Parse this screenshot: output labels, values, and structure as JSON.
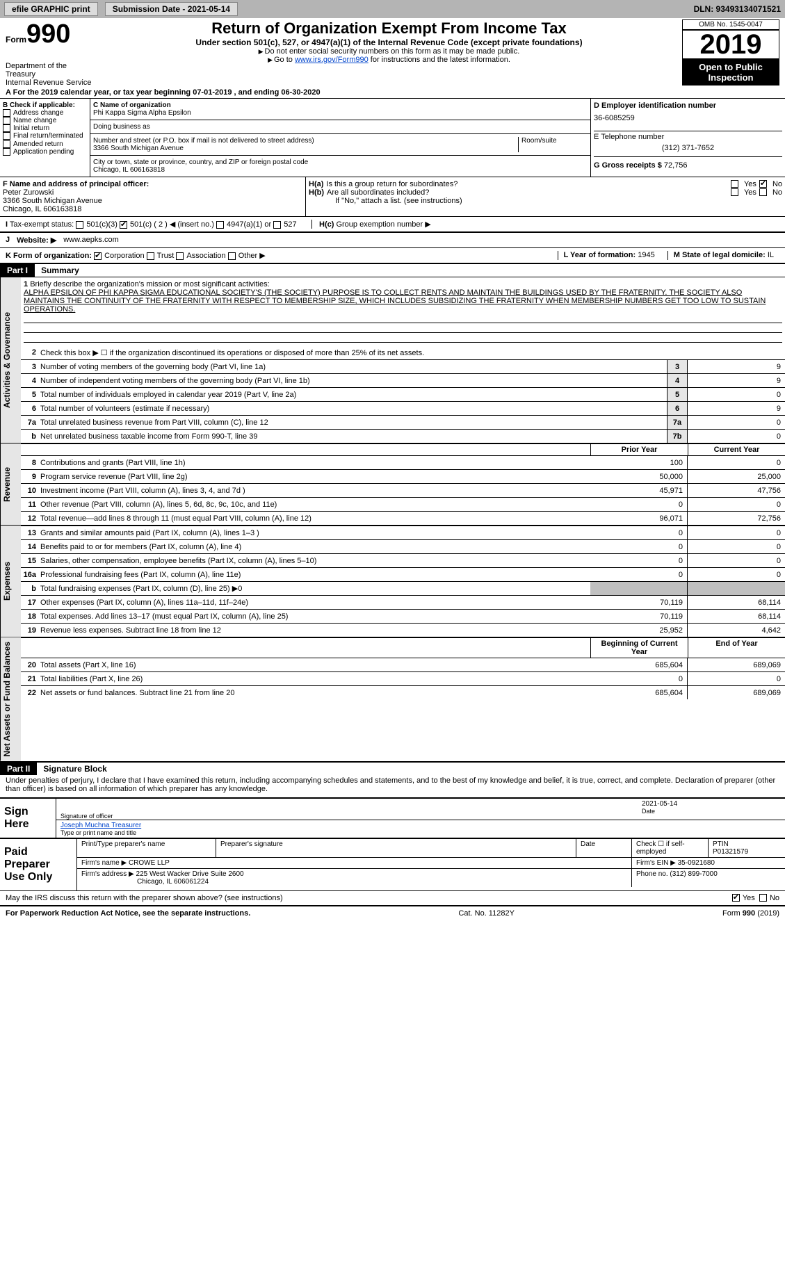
{
  "topbar": {
    "efile": "efile GRAPHIC print",
    "submission": "Submission Date - 2021-05-14",
    "dln": "DLN: 93493134071521"
  },
  "header": {
    "form_label": "Form",
    "form_no": "990",
    "dept": "Department of the Treasury\nInternal Revenue Service",
    "title": "Return of Organization Exempt From Income Tax",
    "sub": "Under section 501(c), 527, or 4947(a)(1) of the Internal Revenue Code (except private foundations)",
    "note1": "Do not enter social security numbers on this form as it may be made public.",
    "note2_pre": "Go to ",
    "note2_link": "www.irs.gov/Form990",
    "note2_post": " for instructions and the latest information.",
    "omb": "OMB No. 1545-0047",
    "year": "2019",
    "open": "Open to Public Inspection"
  },
  "period": "For the 2019 calendar year, or tax year beginning 07-01-2019    , and ending 06-30-2020",
  "section_b": {
    "label": "B Check if applicable:",
    "items": [
      "Address change",
      "Name change",
      "Initial return",
      "Final return/terminated",
      "Amended return",
      "Application pending"
    ]
  },
  "section_c": {
    "label": "C Name of organization",
    "name": "Phi Kappa Sigma Alpha Epsilon",
    "dba_label": "Doing business as",
    "addr_label": "Number and street (or P.O. box if mail is not delivered to street address)",
    "room_label": "Room/suite",
    "addr": "3366 South Michigan Avenue",
    "city_label": "City or town, state or province, country, and ZIP or foreign postal code",
    "city": "Chicago, IL  606163818"
  },
  "section_d": {
    "ein_label": "D Employer identification number",
    "ein": "36-6085259",
    "phone_label": "E Telephone number",
    "phone": "(312) 371-7652",
    "gross_label": "G Gross receipts $",
    "gross": "72,756"
  },
  "section_f": {
    "label": "F Name and address of principal officer:",
    "name": "Peter Zurowski",
    "addr": "3366 South Michigan Avenue",
    "city": "Chicago, IL  606163818"
  },
  "section_h": {
    "ha": "Is this a group return for subordinates?",
    "hb": "Are all subordinates included?",
    "hb_note": "If \"No,\" attach a list. (see instructions)",
    "hc": "Group exemption number ▶"
  },
  "tax_status": {
    "label": "Tax-exempt status:",
    "c3": "501(c)(3)",
    "c": "501(c) ( 2 ) ◀ (insert no.)",
    "a1": "4947(a)(1) or",
    "s527": "527"
  },
  "j_label": "Website: ▶",
  "j_val": "www.aepks.com",
  "k_label": "K Form of organization:",
  "k_opts": [
    "Corporation",
    "Trust",
    "Association",
    "Other ▶"
  ],
  "l_label": "L Year of formation:",
  "l_val": "1945",
  "m_label": "M State of legal domicile:",
  "m_val": "IL",
  "part1": {
    "hdr": "Part I",
    "title": "Summary"
  },
  "mission": {
    "num": "1",
    "label": "Briefly describe the organization's mission or most significant activities:",
    "text": "ALPHA EPSILON OF PHI KAPPA SIGMA EDUCATIONAL SOCIETY'S (THE SOCIETY) PURPOSE IS TO COLLECT RENTS AND MAINTAIN THE BUILDINGS USED BY THE FRATERNITY. THE SOCIETY ALSO MAINTAINS THE CONTINUITY OF THE FRATERNITY WITH RESPECT TO MEMBERSHIP SIZE, WHICH INCLUDES SUBSIDIZING THE FRATERNITY WHEN MEMBERSHIP NUMBERS GET TOO LOW TO SUSTAIN OPERATIONS."
  },
  "gov_rows": [
    {
      "n": "2",
      "d": "Check this box ▶ ☐ if the organization discontinued its operations or disposed of more than 25% of its net assets."
    },
    {
      "n": "3",
      "d": "Number of voting members of the governing body (Part VI, line 1a)",
      "b": "3",
      "v": "9"
    },
    {
      "n": "4",
      "d": "Number of independent voting members of the governing body (Part VI, line 1b)",
      "b": "4",
      "v": "9"
    },
    {
      "n": "5",
      "d": "Total number of individuals employed in calendar year 2019 (Part V, line 2a)",
      "b": "5",
      "v": "0"
    },
    {
      "n": "6",
      "d": "Total number of volunteers (estimate if necessary)",
      "b": "6",
      "v": "9"
    },
    {
      "n": "7a",
      "d": "Total unrelated business revenue from Part VIII, column (C), line 12",
      "b": "7a",
      "v": "0"
    },
    {
      "n": "b",
      "d": "Net unrelated business taxable income from Form 990-T, line 39",
      "b": "7b",
      "v": "0"
    }
  ],
  "col_hdrs": {
    "prior": "Prior Year",
    "current": "Current Year"
  },
  "rev_rows": [
    {
      "n": "8",
      "d": "Contributions and grants (Part VIII, line 1h)",
      "p": "100",
      "c": "0"
    },
    {
      "n": "9",
      "d": "Program service revenue (Part VIII, line 2g)",
      "p": "50,000",
      "c": "25,000"
    },
    {
      "n": "10",
      "d": "Investment income (Part VIII, column (A), lines 3, 4, and 7d )",
      "p": "45,971",
      "c": "47,756"
    },
    {
      "n": "11",
      "d": "Other revenue (Part VIII, column (A), lines 5, 6d, 8c, 9c, 10c, and 11e)",
      "p": "0",
      "c": "0"
    },
    {
      "n": "12",
      "d": "Total revenue—add lines 8 through 11 (must equal Part VIII, column (A), line 12)",
      "p": "96,071",
      "c": "72,756"
    }
  ],
  "exp_rows": [
    {
      "n": "13",
      "d": "Grants and similar amounts paid (Part IX, column (A), lines 1–3 )",
      "p": "0",
      "c": "0"
    },
    {
      "n": "14",
      "d": "Benefits paid to or for members (Part IX, column (A), line 4)",
      "p": "0",
      "c": "0"
    },
    {
      "n": "15",
      "d": "Salaries, other compensation, employee benefits (Part IX, column (A), lines 5–10)",
      "p": "0",
      "c": "0"
    },
    {
      "n": "16a",
      "d": "Professional fundraising fees (Part IX, column (A), line 11e)",
      "p": "0",
      "c": "0"
    },
    {
      "n": "b",
      "d": "Total fundraising expenses (Part IX, column (D), line 25) ▶0",
      "p": "",
      "c": "",
      "shade": true
    },
    {
      "n": "17",
      "d": "Other expenses (Part IX, column (A), lines 11a–11d, 11f–24e)",
      "p": "70,119",
      "c": "68,114"
    },
    {
      "n": "18",
      "d": "Total expenses. Add lines 13–17 (must equal Part IX, column (A), line 25)",
      "p": "70,119",
      "c": "68,114"
    },
    {
      "n": "19",
      "d": "Revenue less expenses. Subtract line 18 from line 12",
      "p": "25,952",
      "c": "4,642"
    }
  ],
  "bal_hdrs": {
    "b": "Beginning of Current Year",
    "e": "End of Year"
  },
  "bal_rows": [
    {
      "n": "20",
      "d": "Total assets (Part X, line 16)",
      "p": "685,604",
      "c": "689,069"
    },
    {
      "n": "21",
      "d": "Total liabilities (Part X, line 26)",
      "p": "0",
      "c": "0"
    },
    {
      "n": "22",
      "d": "Net assets or fund balances. Subtract line 21 from line 20",
      "p": "685,604",
      "c": "689,069"
    }
  ],
  "vtabs": {
    "a": "Activities & Governance",
    "r": "Revenue",
    "e": "Expenses",
    "n": "Net Assets or Fund Balances"
  },
  "part2": {
    "hdr": "Part II",
    "title": "Signature Block"
  },
  "perjury": "Under penalties of perjury, I declare that I have examined this return, including accompanying schedules and statements, and to the best of my knowledge and belief, it is true, correct, and complete. Declaration of preparer (other than officer) is based on all information of which preparer has any knowledge.",
  "sign": {
    "here": "Sign Here",
    "sig_label": "Signature of officer",
    "date_label": "Date",
    "date": "2021-05-14",
    "name": "Joseph Muchna  Treasurer",
    "name_label": "Type or print name and title"
  },
  "prep": {
    "label": "Paid Preparer Use Only",
    "h1": "Print/Type preparer's name",
    "h2": "Preparer's signature",
    "h3": "Date",
    "h4": "Check ☐ if self-employed",
    "ptin_label": "PTIN",
    "ptin": "P01321579",
    "firm_label": "Firm's name ▶",
    "firm": "CROWE LLP",
    "ein_label": "Firm's EIN ▶",
    "ein": "35-0921680",
    "addr_label": "Firm's address ▶",
    "addr": "225 West Wacker Drive Suite 2600",
    "addr2": "Chicago, IL  606061224",
    "phone_label": "Phone no.",
    "phone": "(312) 899-7000"
  },
  "discuss": "May the IRS discuss this return with the preparer shown above? (see instructions)",
  "footer": {
    "l": "For Paperwork Reduction Act Notice, see the separate instructions.",
    "m": "Cat. No. 11282Y",
    "r": "Form 990 (2019)"
  },
  "yes": "Yes",
  "no": "No"
}
